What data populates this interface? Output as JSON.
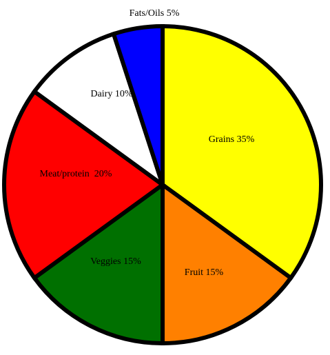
{
  "chart_data": {
    "type": "pie",
    "title": "",
    "slices": [
      {
        "label": "Grains 35%",
        "value": 35,
        "color": "#ffff00"
      },
      {
        "label": "Fruit 15%",
        "value": 15,
        "color": "#ff8000"
      },
      {
        "label": "Veggies 15%",
        "value": 15,
        "color": "#007000"
      },
      {
        "label": "Meat/protein  20%",
        "value": 20,
        "color": "#ff0000"
      },
      {
        "label": "Dairy 10%",
        "value": 10,
        "color": "#ffffff"
      },
      {
        "label": "Fats/Oils 5%",
        "value": 5,
        "color": "#0000ff"
      }
    ],
    "edge_color": "#000000",
    "legend": "none"
  }
}
